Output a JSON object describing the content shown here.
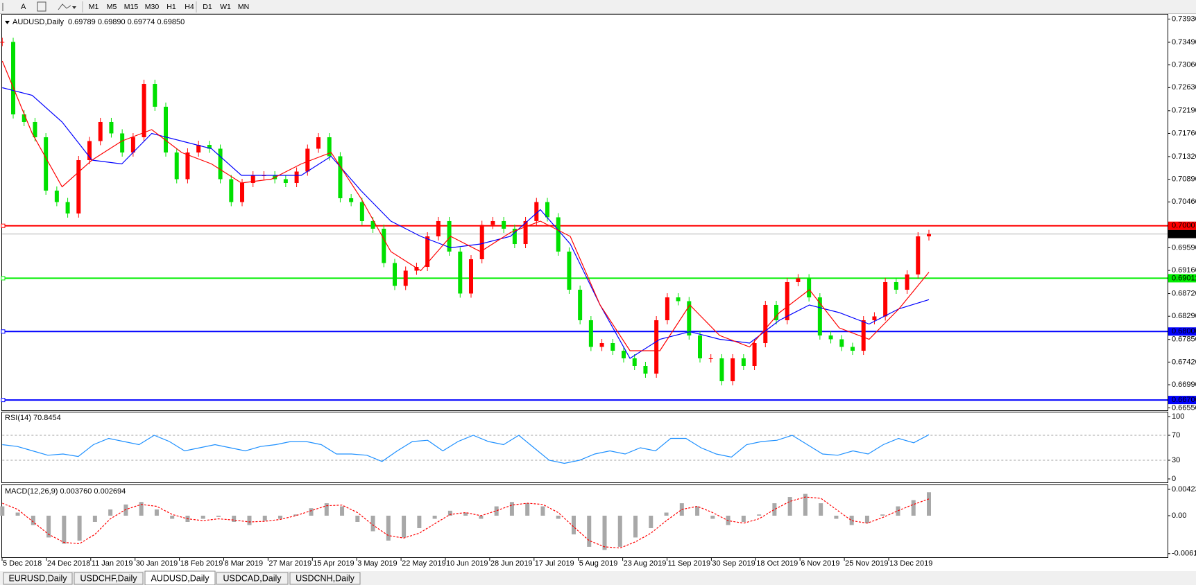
{
  "toolbar": {
    "periods": [
      "M1",
      "M5",
      "M15",
      "M30",
      "H1",
      "H4",
      "D1",
      "W1",
      "MN"
    ]
  },
  "chart_data": [
    {
      "type": "candlestick",
      "title": "AUDUSD,Daily",
      "ohlc_text": "0.69789 0.69890 0.69774 0.69850",
      "up_color": "#ff0000",
      "down_color": "#00e000",
      "closes": [
        0.73496,
        0.72121,
        0.71977,
        0.71687,
        0.70674,
        0.70457,
        0.7024,
        0.71253,
        0.71615,
        0.71977,
        0.7176,
        0.71398,
        0.71687,
        0.727,
        0.72266,
        0.71398,
        0.70891,
        0.71398,
        0.71542,
        0.7147,
        0.70891,
        0.70457,
        0.70819,
        0.70964,
        0.70964,
        0.70891,
        0.70819,
        0.71036,
        0.7147,
        0.71687,
        0.71326,
        0.7053,
        0.70457,
        0.70096,
        0.69951,
        0.693,
        0.68866,
        0.69155,
        0.69227,
        0.69806,
        0.70096,
        0.69517,
        0.68721,
        0.69372,
        0.70023,
        0.70096,
        0.69951,
        0.69661,
        0.70096,
        0.70457,
        0.70168,
        0.69517,
        0.68793,
        0.68214,
        0.67708,
        0.6778,
        0.67635,
        0.67491,
        0.67346,
        0.67201,
        0.68214,
        0.68648,
        0.68576,
        0.67925,
        0.67491,
        0.67491,
        0.67057,
        0.67491,
        0.67346,
        0.6778,
        0.68504,
        0.68214,
        0.68938,
        0.6901,
        0.68648,
        0.67925,
        0.67853,
        0.67708,
        0.67635,
        0.68214,
        0.68287,
        0.68938,
        0.68793,
        0.69083,
        0.69806,
        0.6985
      ],
      "ma_fast": {
        "color": "#ff0000",
        "values": [
          0.73134,
          0.7176,
          0.70747,
          0.71253,
          0.71615,
          0.71832,
          0.71398,
          0.71181,
          0.70819,
          0.70891,
          0.71181,
          0.71398,
          0.7053,
          0.69517,
          0.69155,
          0.69806,
          0.69517,
          0.69879,
          0.70096,
          0.69806,
          0.68504,
          0.67635,
          0.67635,
          0.68504,
          0.67925,
          0.67708,
          0.68359,
          0.68793,
          0.68069,
          0.67853,
          0.68431,
          0.69126
        ]
      },
      "ma_slow": {
        "color": "#0000ff",
        "values": [
          0.72628,
          0.72483,
          0.71977,
          0.71253,
          0.71181,
          0.7176,
          0.71615,
          0.7147,
          0.70964,
          0.70964,
          0.70964,
          0.71326,
          0.70674,
          0.70096,
          0.69806,
          0.69589,
          0.69661,
          0.69806,
          0.70313,
          0.69661,
          0.68504,
          0.67491,
          0.67853,
          0.67997,
          0.67853,
          0.6778,
          0.68214,
          0.68504,
          0.68359,
          0.68142,
          0.68431,
          0.68605
        ]
      },
      "levels": [
        {
          "value": 0.70007,
          "color": "#ff0000"
        },
        {
          "value": 0.69011,
          "color": "#00ee00"
        },
        {
          "value": 0.68,
          "label": "0.68000",
          "color": "#0000ff"
        },
        {
          "value": 0.667,
          "label": "0.66700",
          "color": "#0000ff"
        }
      ],
      "last_price": {
        "value": 0.6985,
        "label": "0.69850"
      },
      "ylim": [
        0.66504,
        0.74029
      ],
      "yticks": [
        {
          "value": 0.7393,
          "label": "0.73930"
        },
        {
          "value": 0.7349,
          "label": "0.73490"
        },
        {
          "value": 0.7306,
          "label": "0.73060"
        },
        {
          "value": 0.7263,
          "label": "0.72630"
        },
        {
          "value": 0.7219,
          "label": "0.72190"
        },
        {
          "value": 0.7176,
          "label": "0.71760"
        },
        {
          "value": 0.7132,
          "label": "0.71320"
        },
        {
          "value": 0.7089,
          "label": "0.70890"
        },
        {
          "value": 0.7046,
          "label": "0.70460"
        },
        {
          "value": 0.6959,
          "label": "0.69590"
        },
        {
          "value": 0.6916,
          "label": "0.69160"
        },
        {
          "value": 0.6872,
          "label": "0.68720"
        },
        {
          "value": 0.6829,
          "label": "0.68290"
        },
        {
          "value": 0.6785,
          "label": "0.67850"
        },
        {
          "value": 0.6742,
          "label": "0.67420"
        },
        {
          "value": 0.6699,
          "label": "0.66990"
        },
        {
          "value": 0.6655,
          "label": "0.66550"
        }
      ],
      "x_labels": [
        "5 Dec 2018",
        "24 Dec 2018",
        "11 Jan 2019",
        "30 Jan 2019",
        "18 Feb 2019",
        "8 Mar 2019",
        "27 Mar 2019",
        "15 Apr 2019",
        "3 May 2019",
        "22 May 2019",
        "10 Jun 2019",
        "28 Jun 2019",
        "17 Jul 2019",
        "5 Aug 2019",
        "23 Aug 2019",
        "11 Sep 2019",
        "30 Sep 2019",
        "18 Oct 2019",
        "6 Nov 2019",
        "25 Nov 2019",
        "13 Dec 2019"
      ]
    },
    {
      "type": "line",
      "title": "RSI(14) 70.8454",
      "color": "#1e90ff",
      "values": [
        55,
        52,
        45,
        38,
        40,
        36,
        55,
        65,
        60,
        55,
        70,
        60,
        45,
        50,
        55,
        50,
        45,
        52,
        55,
        60,
        60,
        55,
        40,
        40,
        38,
        28,
        45,
        60,
        62,
        45,
        60,
        70,
        60,
        55,
        70,
        50,
        30,
        25,
        30,
        40,
        45,
        40,
        50,
        45,
        65,
        65,
        50,
        40,
        35,
        55,
        60,
        62,
        70,
        55,
        40,
        38,
        45,
        40,
        55,
        65,
        58,
        70.85
      ],
      "ylim": [
        -5.6,
        107.8
      ],
      "yticks": [
        100,
        70,
        30,
        0
      ],
      "levels": [
        70,
        30
      ]
    },
    {
      "type": "macd",
      "title": "MACD(12,26,9) 0.003760 0.002694",
      "hist_color": "#a8a8a8",
      "signal_color": "#ff0000",
      "histogram": [
        0.0015,
        0.0005,
        -0.0015,
        -0.0035,
        -0.0045,
        -0.004,
        -0.001,
        0.001,
        0.0018,
        0.0022,
        0.001,
        -0.0005,
        -0.001,
        -0.0005,
        -0.0002,
        -0.001,
        -0.0015,
        -0.0008,
        -0.0005,
        0.0002,
        0.0012,
        0.002,
        0.0015,
        -0.001,
        -0.0025,
        -0.004,
        -0.0035,
        -0.002,
        -0.0005,
        0.0008,
        0.0005,
        -0.0005,
        0.0015,
        0.0022,
        0.002,
        0.0015,
        -0.0005,
        -0.003,
        -0.005,
        -0.0055,
        -0.005,
        -0.0035,
        -0.002,
        0.0005,
        0.002,
        0.0015,
        -0.0005,
        -0.0015,
        -0.001,
        0.0002,
        0.002,
        0.003,
        0.0035,
        0.002,
        -0.0005,
        -0.0015,
        -0.0012,
        0.0002,
        0.0015,
        0.0025,
        0.00376
      ],
      "signal": [
        0.002,
        0.001,
        -0.001,
        -0.003,
        -0.0043,
        -0.0045,
        -0.003,
        -0.0005,
        0.001,
        0.0018,
        0.0015,
        0.0002,
        -0.0005,
        -0.0008,
        -0.0005,
        -0.0007,
        -0.001,
        -0.0009,
        -0.0006,
        0,
        0.0008,
        0.0016,
        0.0017,
        0.0005,
        -0.0015,
        -0.0032,
        -0.0036,
        -0.0028,
        -0.0013,
        0.0002,
        0.0005,
        0,
        0.0008,
        0.0017,
        0.002,
        0.0018,
        0.0005,
        -0.0018,
        -0.004,
        -0.005,
        -0.0052,
        -0.0042,
        -0.0028,
        -0.0008,
        0.001,
        0.0015,
        0.0005,
        -0.0008,
        -0.0012,
        -0.0005,
        0.001,
        0.0023,
        0.003,
        0.0028,
        0.001,
        -0.0008,
        -0.0012,
        -0.0003,
        0.0008,
        0.0018,
        0.002694
      ],
      "ylim": [
        -0.00668,
        0.0049
      ],
      "yticks": [
        0.00423,
        {
          "value": 0,
          "label": "0.00"
        },
        {
          "value": -0.0061,
          "label": "-0.00610"
        }
      ]
    }
  ],
  "tabs": [
    "EURUSD,Daily",
    "USDCHF,Daily",
    "AUDUSD,Daily",
    "USDCAD,Daily",
    "USDCNH,Daily"
  ],
  "active_tab": 2
}
